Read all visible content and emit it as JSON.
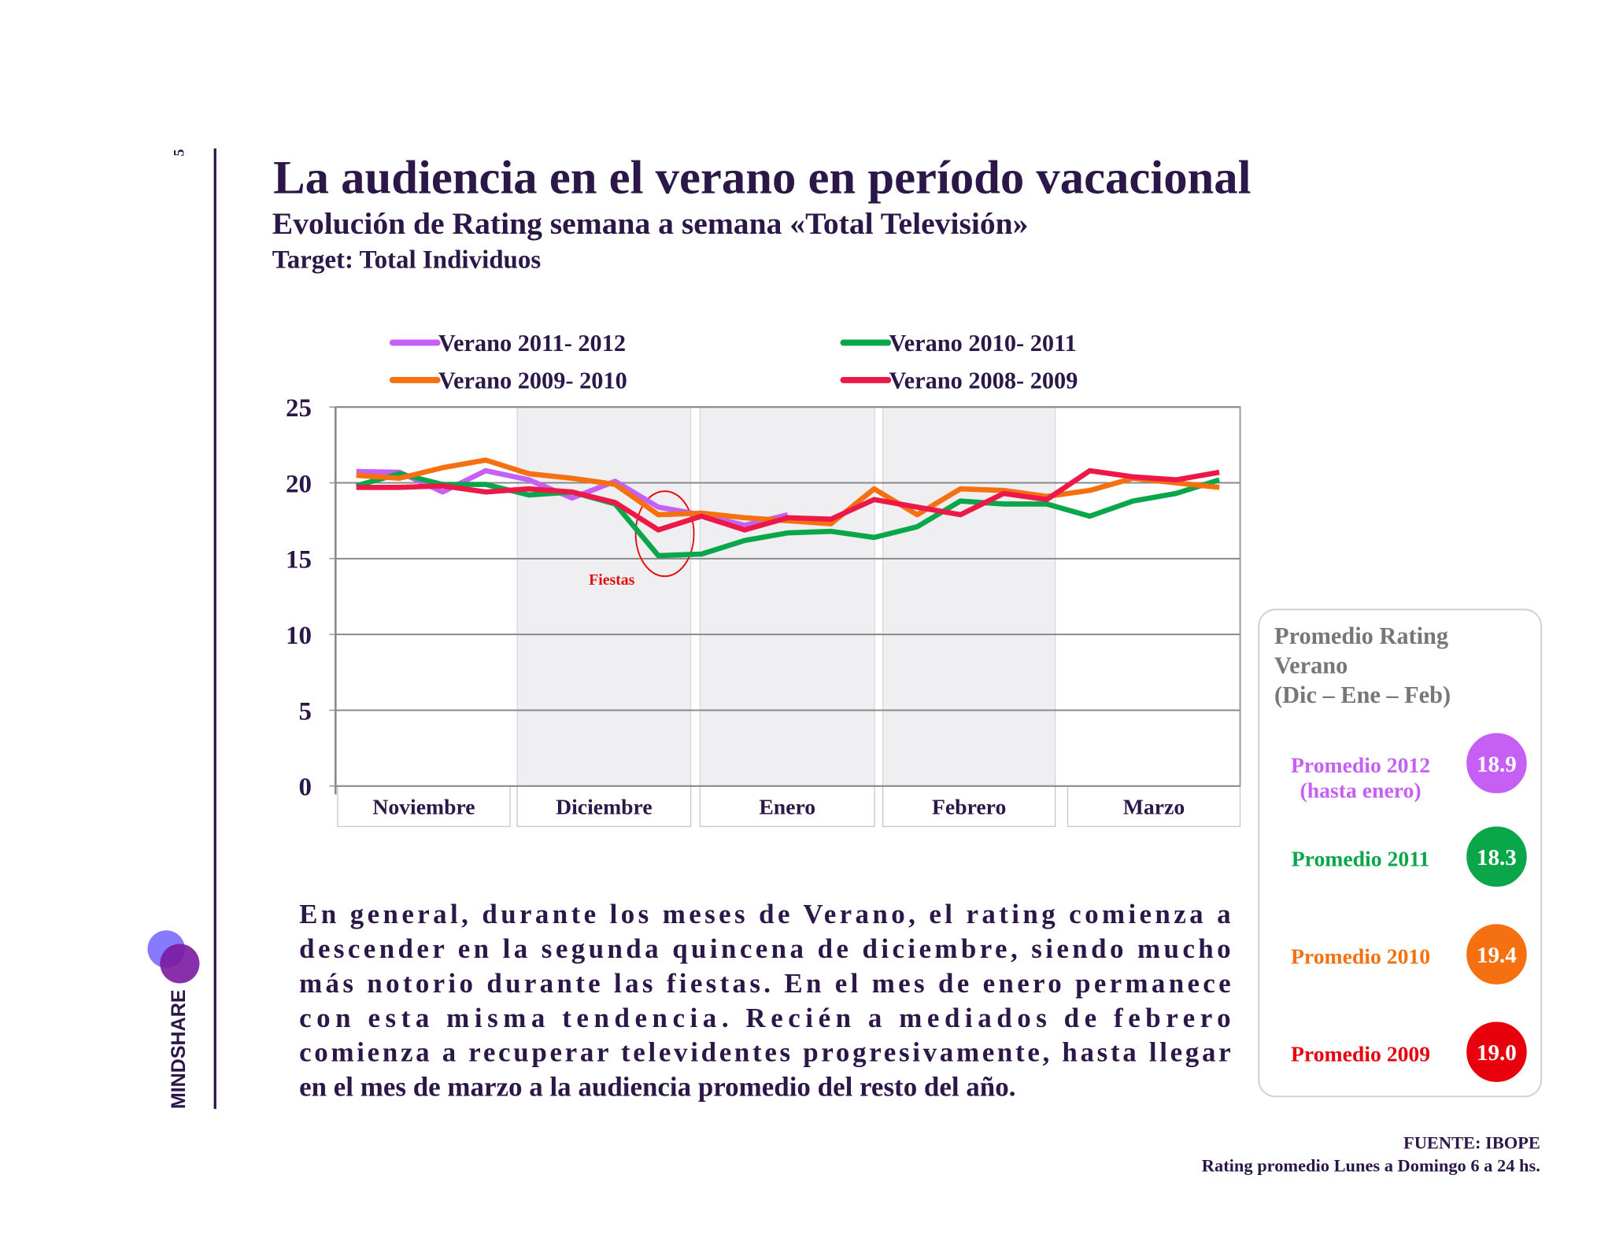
{
  "page_number": "5",
  "logo": "MINDSHARE",
  "chart_data": {
    "type": "line",
    "title": "La audiencia en el verano en período vacacional",
    "subtitle": "Evolución de Rating semana a semana «Total Televisión»",
    "target": "Target: Total Individuos",
    "categories": [
      null,
      null,
      null,
      null,
      null,
      null,
      null,
      null,
      null,
      null,
      null,
      null,
      null,
      null,
      null,
      null,
      null,
      null,
      null,
      null,
      null
    ],
    "months": [
      "Noviembre",
      "Diciembre",
      "Enero",
      "Febrero",
      "Marzo"
    ],
    "ylim": [
      0,
      25
    ],
    "yticks": [
      0,
      5,
      10,
      15,
      20,
      25
    ],
    "grid": true,
    "annotation": "Fiestas",
    "series": [
      {
        "name": "Verano 2011- 2012",
        "color": "#c660f5",
        "values": [
          20.75,
          20.7,
          19.4,
          20.8,
          20.2,
          19.0,
          20.1,
          18.4,
          17.9,
          17.2,
          17.9,
          null,
          null,
          null,
          null,
          null,
          null,
          null,
          null,
          null,
          null
        ]
      },
      {
        "name": "Verano 2010- 2011",
        "color": "#0aa64a",
        "values": [
          19.8,
          20.6,
          19.9,
          19.9,
          19.2,
          19.4,
          18.6,
          15.2,
          15.3,
          16.2,
          16.7,
          16.8,
          16.4,
          17.1,
          18.8,
          18.6,
          18.6,
          17.8,
          18.8,
          19.3,
          20.2
        ]
      },
      {
        "name": "Verano 2009- 2010",
        "color": "#f57010",
        "values": [
          20.5,
          20.3,
          21.0,
          21.5,
          20.6,
          20.3,
          19.9,
          17.9,
          18.0,
          17.7,
          17.5,
          17.3,
          19.6,
          17.9,
          19.6,
          19.5,
          19.1,
          19.5,
          20.3,
          20.0,
          19.7
        ]
      },
      {
        "name": "Verano 2008- 2009",
        "color": "#ec1848",
        "values": [
          19.7,
          19.7,
          19.8,
          19.4,
          19.6,
          19.4,
          18.7,
          16.9,
          17.8,
          16.9,
          17.7,
          17.6,
          18.9,
          18.4,
          17.9,
          19.3,
          18.9,
          20.8,
          20.4,
          20.2,
          20.7
        ]
      }
    ]
  },
  "averages": {
    "heading": [
      "Promedio Rating",
      "Verano",
      "(Dic – Ene – Feb)"
    ],
    "items": [
      {
        "label": [
          "Promedio 2012",
          "(hasta enero)"
        ],
        "color": "#c660f5"
      },
      {
        "label": [
          "Promedio 2011"
        ],
        "color": "#0aa64a"
      },
      {
        "label": [
          "Promedio 2010"
        ],
        "color": "#f57010"
      },
      {
        "label": [
          "Promedio 2009"
        ],
        "color": "#e8000c"
      }
    ],
    "values": [
      18.9,
      18.3,
      19.4,
      19.0
    ],
    "value_labels": [
      "18.9",
      "18.3",
      "19.4",
      "19.0"
    ]
  },
  "paragraph": [
    "En general, durante los meses de Verano, el rating comienza a",
    "descender en la segunda quincena de diciembre, siendo mucho",
    "más notorio durante las fiestas. En el mes de enero permanece",
    "con esta misma tendencia. Recién a mediados de febrero",
    "comienza a recuperar televidentes progresivamente,  hasta llegar",
    "en el mes de marzo a la audiencia promedio del resto del año."
  ],
  "source": [
    "FUENTE: IBOPE",
    "Rating promedio Lunes a Domingo 6 a 24 hs."
  ]
}
